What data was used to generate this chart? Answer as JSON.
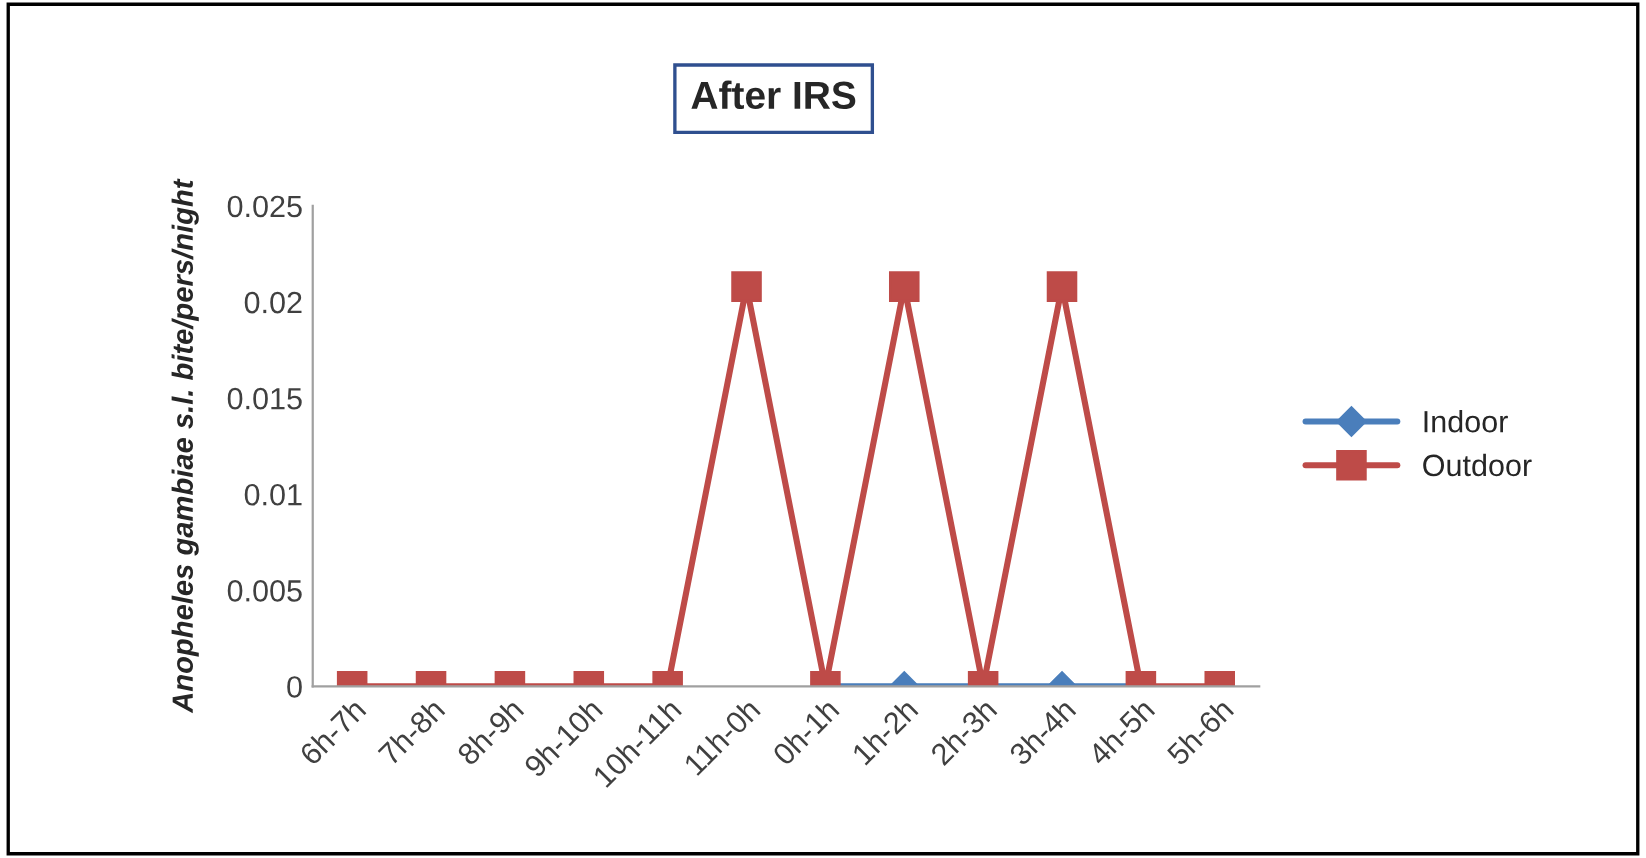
{
  "chart_data": {
    "type": "line",
    "title": "After IRS",
    "ylabel": "Anopheles gambiae s.l. bite/pers/night",
    "categories": [
      "6h-7h",
      "7h-8h",
      "8h-9h",
      "9h-10h",
      "10h-11h",
      "11h-0h",
      "0h-1h",
      "1h-2h",
      "2h-3h",
      "3h-4h",
      "4h-5h",
      "5h-6h"
    ],
    "series": [
      {
        "name": "Indoor",
        "color": "#4a7ebb",
        "marker": "diamond",
        "values": [
          null,
          null,
          null,
          null,
          null,
          null,
          0,
          0,
          0,
          0,
          0,
          null
        ]
      },
      {
        "name": "Outdoor",
        "color": "#be4b48",
        "marker": "square",
        "values": [
          0,
          0,
          0,
          0,
          0,
          0.0208,
          0,
          0.0208,
          0,
          0.0208,
          0,
          0
        ]
      }
    ],
    "ylim": [
      0,
      0.025
    ],
    "yticks": [
      0,
      0.005,
      0.01,
      0.015,
      0.02,
      0.025
    ],
    "grid": false,
    "legend": "right",
    "line_style": "solid"
  }
}
